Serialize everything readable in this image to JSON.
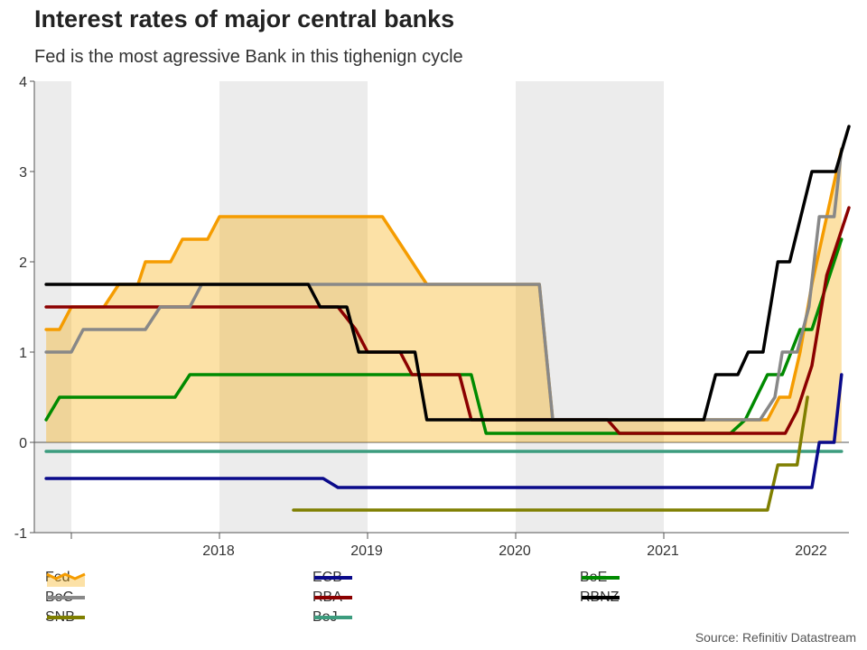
{
  "title": "Interest rates of major central banks",
  "subtitle": "Fed is the most agressive Bank in this tighenign cycle",
  "source": "Source: Refinitiv Datastream",
  "chart_data": {
    "type": "line",
    "x_start": 2017.25,
    "x_end": 2022.75,
    "ylim": [
      -1,
      4
    ],
    "yticks": [
      -1,
      0,
      1,
      2,
      3,
      4
    ],
    "xticks": [
      {
        "label": "2018",
        "value": 2018.5
      },
      {
        "label": "2019",
        "value": 2019.5
      },
      {
        "label": "2020",
        "value": 2020.5
      },
      {
        "label": "2021",
        "value": 2021.5
      },
      {
        "label": "2022",
        "value": 2022.5
      }
    ],
    "shaded_years": [
      [
        2017.25,
        2017.5
      ],
      [
        2018.5,
        2019.5
      ],
      [
        2020.5,
        2021.5
      ]
    ],
    "series": [
      {
        "name": "Fed",
        "color": "#f59c00",
        "area": true,
        "points": [
          [
            2017.33,
            1.25
          ],
          [
            2017.42,
            1.25
          ],
          [
            2017.5,
            1.5
          ],
          [
            2017.72,
            1.5
          ],
          [
            2017.82,
            1.75
          ],
          [
            2017.95,
            1.75
          ],
          [
            2018.0,
            2.0
          ],
          [
            2018.17,
            2.0
          ],
          [
            2018.25,
            2.25
          ],
          [
            2018.42,
            2.25
          ],
          [
            2018.5,
            2.5
          ],
          [
            2019.6,
            2.5
          ],
          [
            2019.7,
            2.25
          ],
          [
            2019.8,
            2.0
          ],
          [
            2019.9,
            1.75
          ],
          [
            2020.66,
            1.75
          ],
          [
            2020.75,
            0.25
          ],
          [
            2022.2,
            0.25
          ],
          [
            2022.28,
            0.5
          ],
          [
            2022.35,
            0.5
          ],
          [
            2022.42,
            1.0
          ],
          [
            2022.5,
            1.75
          ],
          [
            2022.6,
            2.5
          ],
          [
            2022.7,
            3.25
          ]
        ]
      },
      {
        "name": "ECB",
        "color": "#0a0a8a",
        "points": [
          [
            2017.33,
            -0.4
          ],
          [
            2019.2,
            -0.4
          ],
          [
            2019.3,
            -0.5
          ],
          [
            2022.5,
            -0.5
          ],
          [
            2022.55,
            0.0
          ],
          [
            2022.65,
            0.0
          ],
          [
            2022.7,
            0.75
          ]
        ]
      },
      {
        "name": "BoE",
        "color": "#008a00",
        "points": [
          [
            2017.33,
            0.25
          ],
          [
            2017.42,
            0.5
          ],
          [
            2018.2,
            0.5
          ],
          [
            2018.3,
            0.75
          ],
          [
            2020.2,
            0.75
          ],
          [
            2020.3,
            0.1
          ],
          [
            2021.95,
            0.1
          ],
          [
            2022.05,
            0.25
          ],
          [
            2022.2,
            0.75
          ],
          [
            2022.3,
            0.75
          ],
          [
            2022.42,
            1.25
          ],
          [
            2022.5,
            1.25
          ],
          [
            2022.7,
            2.25
          ]
        ]
      },
      {
        "name": "BoC",
        "color": "#888888",
        "points": [
          [
            2017.33,
            1.0
          ],
          [
            2017.5,
            1.0
          ],
          [
            2017.58,
            1.25
          ],
          [
            2018.0,
            1.25
          ],
          [
            2018.1,
            1.5
          ],
          [
            2018.3,
            1.5
          ],
          [
            2018.38,
            1.75
          ],
          [
            2020.66,
            1.75
          ],
          [
            2020.75,
            0.25
          ],
          [
            2022.15,
            0.25
          ],
          [
            2022.25,
            0.5
          ],
          [
            2022.3,
            1.0
          ],
          [
            2022.4,
            1.0
          ],
          [
            2022.48,
            1.5
          ],
          [
            2022.55,
            2.5
          ],
          [
            2022.65,
            2.5
          ],
          [
            2022.7,
            3.25
          ]
        ]
      },
      {
        "name": "RBA",
        "color": "#8b0000",
        "points": [
          [
            2017.33,
            1.5
          ],
          [
            2019.3,
            1.5
          ],
          [
            2019.42,
            1.25
          ],
          [
            2019.5,
            1.0
          ],
          [
            2019.72,
            1.0
          ],
          [
            2019.8,
            0.75
          ],
          [
            2020.12,
            0.75
          ],
          [
            2020.2,
            0.25
          ],
          [
            2021.12,
            0.25
          ],
          [
            2021.2,
            0.1
          ],
          [
            2022.32,
            0.1
          ],
          [
            2022.4,
            0.35
          ],
          [
            2022.5,
            0.85
          ],
          [
            2022.6,
            1.85
          ],
          [
            2022.7,
            2.35
          ],
          [
            2022.75,
            2.6
          ]
        ]
      },
      {
        "name": "RBNZ",
        "color": "#000000",
        "points": [
          [
            2017.33,
            1.75
          ],
          [
            2019.1,
            1.75
          ],
          [
            2019.18,
            1.5
          ],
          [
            2019.36,
            1.5
          ],
          [
            2019.44,
            1.0
          ],
          [
            2019.82,
            1.0
          ],
          [
            2019.9,
            0.25
          ],
          [
            2021.77,
            0.25
          ],
          [
            2021.85,
            0.75
          ],
          [
            2022.0,
            0.75
          ],
          [
            2022.07,
            1.0
          ],
          [
            2022.17,
            1.0
          ],
          [
            2022.27,
            2.0
          ],
          [
            2022.35,
            2.0
          ],
          [
            2022.5,
            3.0
          ],
          [
            2022.6,
            3.0
          ],
          [
            2022.66,
            3.0
          ],
          [
            2022.75,
            3.5
          ]
        ]
      },
      {
        "name": "SNB",
        "color": "#7f7f00",
        "points": [
          [
            2019.0,
            -0.75
          ],
          [
            2022.2,
            -0.75
          ],
          [
            2022.27,
            -0.25
          ],
          [
            2022.4,
            -0.25
          ],
          [
            2022.47,
            0.5
          ]
        ]
      },
      {
        "name": "BoJ",
        "color": "#3c9c7e",
        "points": [
          [
            2017.33,
            -0.1
          ],
          [
            2022.7,
            -0.1
          ]
        ]
      }
    ]
  }
}
